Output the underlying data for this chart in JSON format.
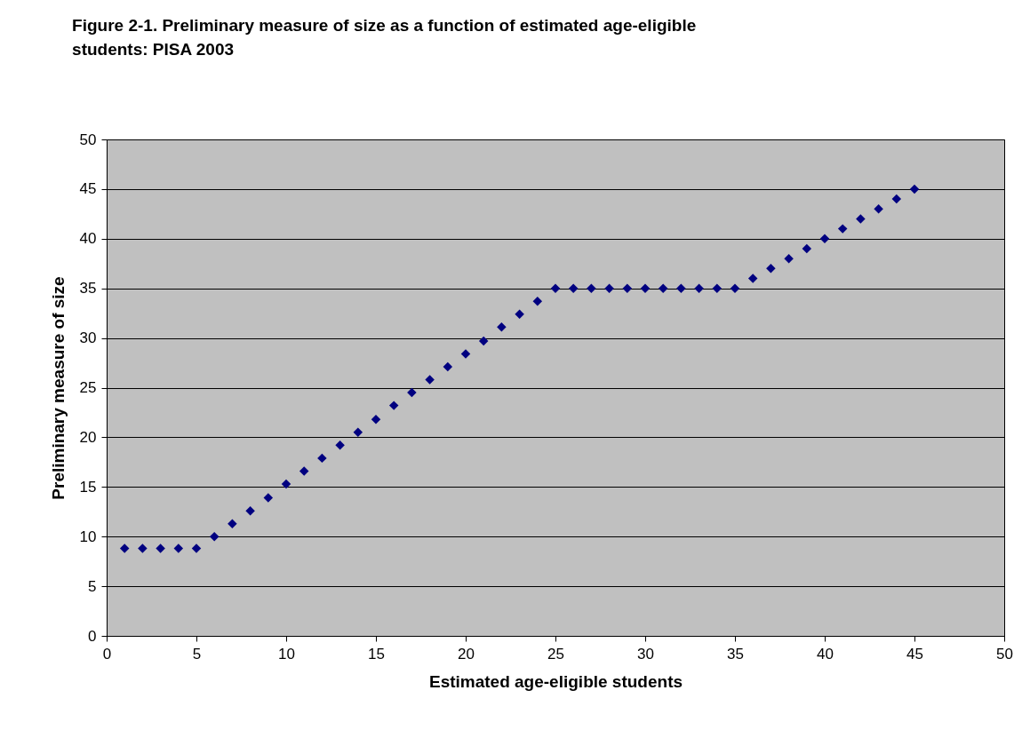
{
  "chart_data": {
    "type": "scatter",
    "title": "Figure 2-1.  Preliminary measure of size as a function of estimated age-eligible students: PISA 2003",
    "xlabel": "Estimated age-eligible students",
    "ylabel": "Preliminary measure of size",
    "x": [
      1,
      2,
      3,
      4,
      5,
      6,
      7,
      8,
      9,
      10,
      11,
      12,
      13,
      14,
      15,
      16,
      17,
      18,
      19,
      20,
      21,
      22,
      23,
      24,
      25,
      26,
      27,
      28,
      29,
      30,
      31,
      32,
      33,
      34,
      35,
      36,
      37,
      38,
      39,
      40,
      41,
      42,
      43,
      44,
      45
    ],
    "series": [
      {
        "color": "#000080",
        "values": [
          8.8,
          8.8,
          8.8,
          8.8,
          8.8,
          10,
          11.3,
          12.6,
          13.9,
          15.3,
          16.6,
          17.9,
          19.2,
          20.5,
          21.8,
          23.2,
          24.5,
          25.8,
          27.1,
          28.4,
          29.7,
          31.1,
          32.4,
          33.7,
          35,
          35,
          35,
          35,
          35,
          35,
          35,
          35,
          35,
          35,
          35,
          36,
          37,
          38,
          39,
          40,
          41,
          42,
          43,
          44,
          45
        ]
      }
    ],
    "xlim": [
      0,
      50
    ],
    "xticks": [
      0,
      5,
      10,
      15,
      20,
      25,
      30,
      35,
      40,
      45,
      50
    ],
    "ylim": [
      0,
      50
    ],
    "yticks": [
      0,
      5,
      10,
      15,
      20,
      25,
      30,
      35,
      40,
      45,
      50
    ],
    "grid": "y",
    "marker": "diamond"
  }
}
